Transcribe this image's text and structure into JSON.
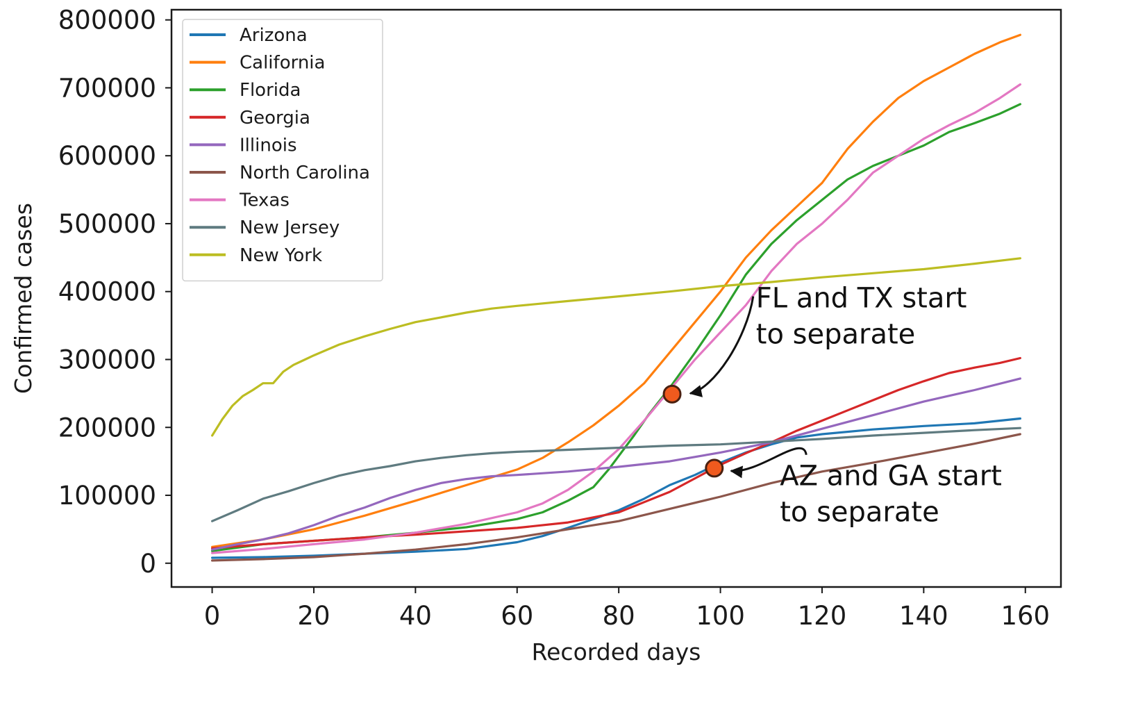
{
  "chart_data": {
    "type": "line",
    "title": "",
    "xlabel": "Recorded days",
    "ylabel": "Confirmed cases",
    "xlim": [
      -8,
      167
    ],
    "ylim": [
      -35000,
      815000
    ],
    "xticks": [
      0,
      20,
      40,
      60,
      80,
      100,
      120,
      140,
      160
    ],
    "yticks": [
      0,
      100000,
      200000,
      300000,
      400000,
      500000,
      600000,
      700000,
      800000
    ],
    "legend_position": "top-left",
    "series": [
      {
        "name": "Arizona",
        "color": "#1f77b4",
        "x": [
          0,
          10,
          20,
          30,
          40,
          50,
          60,
          65,
          70,
          75,
          80,
          85,
          90,
          95,
          100,
          105,
          110,
          115,
          120,
          130,
          140,
          150,
          159
        ],
        "y": [
          8000,
          9000,
          11000,
          14000,
          17000,
          21000,
          31000,
          40000,
          52000,
          65000,
          78000,
          95000,
          115000,
          130000,
          148000,
          163000,
          175000,
          185000,
          190000,
          197000,
          202000,
          206000,
          213000
        ]
      },
      {
        "name": "California",
        "color": "#ff7f0e",
        "x": [
          0,
          10,
          20,
          30,
          40,
          50,
          60,
          65,
          70,
          75,
          80,
          85,
          90,
          95,
          100,
          105,
          110,
          115,
          120,
          125,
          130,
          135,
          140,
          145,
          150,
          155,
          159
        ],
        "y": [
          24000,
          35000,
          50000,
          70000,
          92000,
          115000,
          138000,
          155000,
          178000,
          203000,
          232000,
          265000,
          310000,
          355000,
          400000,
          450000,
          490000,
          525000,
          560000,
          610000,
          650000,
          685000,
          710000,
          730000,
          750000,
          767000,
          778000
        ]
      },
      {
        "name": "Florida",
        "color": "#2ca02c",
        "x": [
          0,
          10,
          20,
          30,
          40,
          50,
          60,
          65,
          70,
          75,
          78,
          80,
          83,
          86,
          90,
          95,
          100,
          105,
          110,
          115,
          120,
          125,
          130,
          135,
          140,
          145,
          150,
          155,
          159
        ],
        "y": [
          18000,
          28000,
          33000,
          38000,
          45000,
          53000,
          65000,
          75000,
          92000,
          112000,
          138000,
          158000,
          188000,
          220000,
          258000,
          310000,
          365000,
          425000,
          470000,
          505000,
          535000,
          565000,
          585000,
          600000,
          615000,
          635000,
          648000,
          662000,
          676000
        ]
      },
      {
        "name": "Georgia",
        "color": "#d62728",
        "x": [
          0,
          10,
          20,
          30,
          40,
          50,
          60,
          70,
          80,
          85,
          90,
          95,
          100,
          105,
          110,
          115,
          120,
          125,
          130,
          135,
          140,
          145,
          150,
          155,
          159
        ],
        "y": [
          22000,
          28000,
          33000,
          38000,
          42000,
          47000,
          52000,
          60000,
          75000,
          90000,
          105000,
          125000,
          145000,
          162000,
          178000,
          195000,
          210000,
          225000,
          240000,
          255000,
          268000,
          280000,
          288000,
          295000,
          302000
        ]
      },
      {
        "name": "Illinois",
        "color": "#9467bd",
        "x": [
          0,
          5,
          10,
          15,
          20,
          25,
          30,
          35,
          40,
          45,
          50,
          55,
          60,
          70,
          80,
          90,
          100,
          110,
          120,
          130,
          140,
          150,
          159
        ],
        "y": [
          20000,
          28000,
          35000,
          44000,
          56000,
          70000,
          82000,
          96000,
          108000,
          118000,
          124000,
          128000,
          130000,
          135000,
          142000,
          150000,
          163000,
          178000,
          198000,
          218000,
          238000,
          255000,
          272000
        ]
      },
      {
        "name": "North Carolina",
        "color": "#8c564b",
        "x": [
          0,
          10,
          20,
          30,
          40,
          50,
          60,
          70,
          80,
          90,
          100,
          110,
          120,
          130,
          140,
          150,
          159
        ],
        "y": [
          4000,
          6000,
          9000,
          14000,
          20000,
          28000,
          38000,
          50000,
          62000,
          80000,
          98000,
          118000,
          135000,
          148000,
          162000,
          176000,
          190000
        ]
      },
      {
        "name": "Texas",
        "color": "#e377c2",
        "x": [
          0,
          10,
          20,
          30,
          40,
          50,
          60,
          65,
          70,
          75,
          80,
          85,
          90,
          95,
          100,
          105,
          110,
          115,
          120,
          125,
          130,
          135,
          140,
          145,
          150,
          155,
          159
        ],
        "y": [
          15000,
          21000,
          28000,
          35000,
          45000,
          58000,
          75000,
          88000,
          108000,
          135000,
          168000,
          210000,
          255000,
          300000,
          340000,
          380000,
          430000,
          470000,
          500000,
          535000,
          575000,
          600000,
          625000,
          645000,
          663000,
          685000,
          705000
        ]
      },
      {
        "name": "New Jersey",
        "color": "#5f7b80",
        "x": [
          0,
          5,
          10,
          15,
          20,
          25,
          30,
          35,
          40,
          45,
          50,
          55,
          60,
          70,
          80,
          90,
          100,
          110,
          120,
          130,
          140,
          150,
          159
        ],
        "y": [
          62000,
          78000,
          95000,
          106000,
          118000,
          129000,
          137000,
          143000,
          150000,
          155000,
          159000,
          162000,
          164000,
          167000,
          170000,
          173000,
          175000,
          179000,
          183000,
          188000,
          192000,
          196000,
          199000
        ]
      },
      {
        "name": "New York",
        "color": "#bcbd22",
        "x": [
          0,
          2,
          4,
          6,
          8,
          10,
          12,
          14,
          16,
          18,
          20,
          25,
          30,
          35,
          40,
          45,
          50,
          55,
          60,
          70,
          80,
          90,
          100,
          110,
          120,
          130,
          140,
          150,
          159
        ],
        "y": [
          188000,
          212000,
          232000,
          246000,
          255000,
          265000,
          265000,
          282000,
          292000,
          299000,
          306000,
          322000,
          334000,
          345000,
          355000,
          362000,
          369000,
          375000,
          379000,
          386000,
          393000,
          400000,
          408000,
          414000,
          421000,
          427000,
          433000,
          441000,
          449000
        ]
      }
    ],
    "annotations": [
      {
        "line1": "FL and TX start",
        "line2": "to separate",
        "point_x": 90.5,
        "point_y": 249000,
        "text_x": 107,
        "text_y": 350000
      },
      {
        "line1": "AZ and GA start",
        "line2": "to separate",
        "point_x": 98.8,
        "point_y": 140000,
        "text_x": 111.7,
        "text_y": 88000
      }
    ],
    "marker_color": "#f05a1e"
  }
}
